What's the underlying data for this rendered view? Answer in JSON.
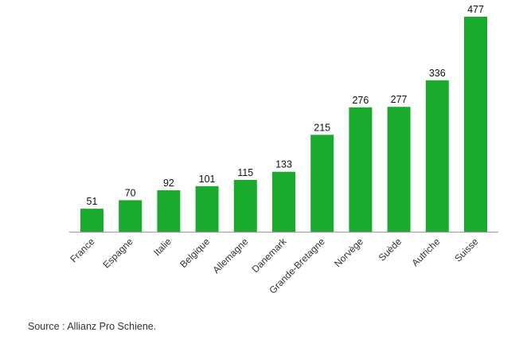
{
  "chart_data": {
    "type": "bar",
    "title": "",
    "xlabel": "",
    "ylabel": "",
    "categories": [
      "France",
      "Espagne",
      "Italie",
      "Belgique",
      "Allemagne",
      "Danemark",
      "Grande-Bretagne",
      "Norvège",
      "Suède",
      "Autriche",
      "Suisse"
    ],
    "values": [
      51,
      70,
      92,
      101,
      115,
      133,
      215,
      276,
      277,
      336,
      477
    ],
    "ylim": [
      0,
      477
    ],
    "grid": false,
    "legend": "none",
    "bar_color": "#1aab2e",
    "axis_color": "#999999"
  },
  "source": {
    "text": "Source : Allianz Pro Schiene."
  }
}
